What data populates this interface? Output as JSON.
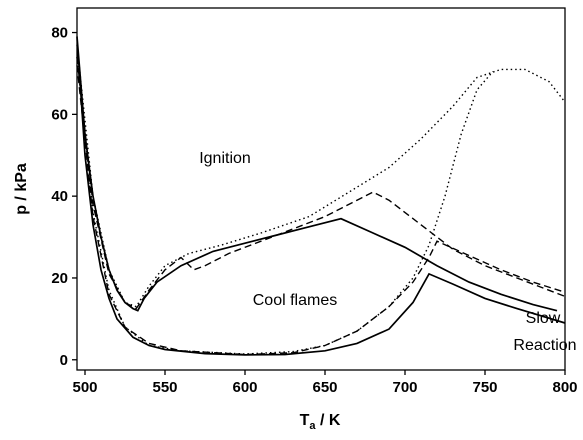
{
  "chart_data": {
    "type": "line",
    "ylabel": "p / kPa",
    "xlabel": [
      "T",
      "a",
      " / K"
    ],
    "annotations": [
      "Ignition",
      "Cool flames",
      "Slow",
      "Reaction"
    ],
    "xlim": [
      495,
      800
    ],
    "xticks": [
      500,
      550,
      600,
      650,
      700,
      750,
      800
    ],
    "ylim": [
      -2.5,
      86
    ],
    "yticks": [
      0,
      20,
      40,
      60,
      80
    ],
    "series": [
      {
        "color": "#000000",
        "style": "solid",
        "x": [
          495,
          500,
          505,
          510,
          515,
          520,
          525,
          530,
          533,
          537,
          545,
          560,
          580,
          600,
          620,
          640,
          660,
          680,
          700,
          720,
          740,
          760,
          780,
          795,
          null,
          495,
          500,
          505,
          510,
          515,
          520,
          530,
          540,
          550,
          575,
          600,
          625,
          650,
          670,
          690,
          705,
          715,
          730,
          750,
          770,
          800
        ],
        "values": [
          79,
          55,
          40,
          30,
          22,
          17,
          14,
          12.5,
          12,
          15,
          19,
          23,
          26.5,
          28.5,
          30.5,
          32.5,
          34.5,
          31,
          27.5,
          23,
          19,
          16,
          13.5,
          12,
          null,
          79,
          50,
          33,
          22,
          15,
          10,
          5.5,
          3.5,
          2.5,
          1.5,
          1.2,
          1.3,
          2.2,
          4,
          7.5,
          14,
          21,
          18.5,
          15,
          12.5,
          9
        ]
      },
      {
        "color": "#000000",
        "style": "dashed",
        "x": [
          495,
          505,
          515,
          525,
          532,
          540,
          550,
          560,
          568,
          575,
          590,
          610,
          630,
          650,
          670,
          680,
          690,
          710,
          730,
          750,
          770,
          800,
          null,
          495,
          505,
          515,
          525,
          540,
          560,
          600,
          630,
          650,
          670,
          690,
          705,
          715,
          720,
          740,
          760,
          780,
          800
        ],
        "values": [
          74,
          38,
          21,
          14,
          12.5,
          17,
          22,
          25,
          22,
          23,
          26,
          29,
          32,
          35,
          39,
          41,
          39,
          33,
          27,
          23,
          20,
          15.5,
          null,
          72,
          35,
          16,
          8,
          4,
          2.2,
          1.3,
          1.7,
          3.5,
          7,
          13,
          19,
          25,
          29,
          25.5,
          22,
          19,
          16.5
        ]
      },
      {
        "color": "#000000",
        "style": "dotted",
        "x": [
          495,
          505,
          515,
          525,
          532,
          540,
          550,
          565,
          585,
          610,
          640,
          665,
          690,
          710,
          730,
          745,
          760,
          775,
          790,
          800,
          null,
          495,
          505,
          515,
          525,
          540,
          560,
          600,
          630,
          650,
          670,
          690,
          705,
          715,
          725,
          735,
          745,
          755
        ],
        "values": [
          77,
          40,
          22,
          14,
          13,
          18,
          23,
          26,
          28,
          31,
          35,
          41,
          47,
          54,
          62,
          69,
          71,
          71,
          68,
          63,
          null,
          74,
          36,
          17,
          8,
          3.5,
          2.2,
          1.4,
          2,
          3.5,
          7,
          13,
          20,
          28,
          40,
          55,
          66,
          70.5
        ]
      }
    ]
  }
}
